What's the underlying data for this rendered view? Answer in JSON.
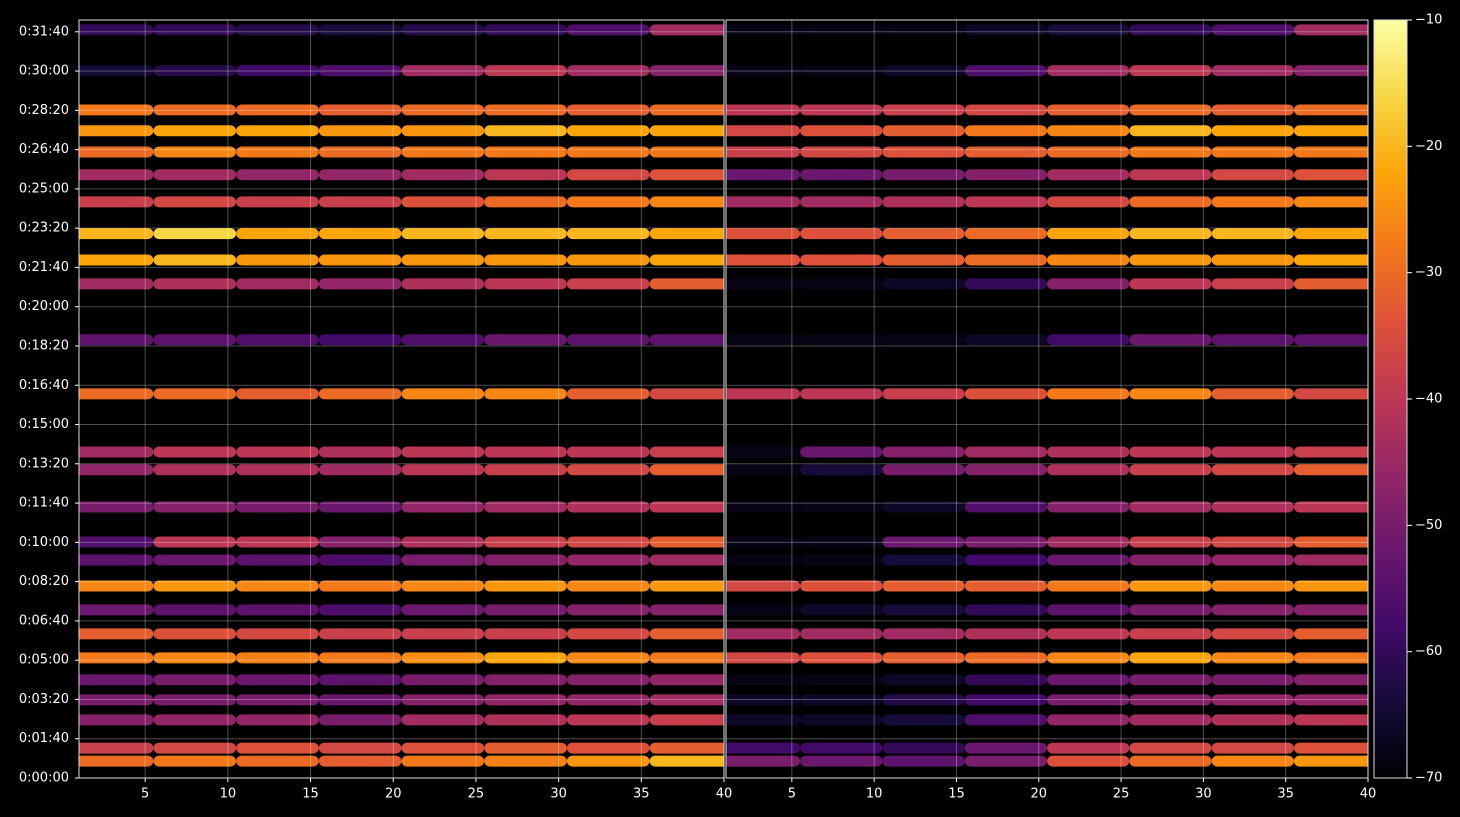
{
  "chart_data": [
    {
      "type": "heatmap",
      "colormap": "inferno",
      "grid": true,
      "x": [
        3,
        8,
        13,
        18,
        23,
        28,
        33,
        38
      ],
      "y": [
        43,
        76,
        148,
        199,
        250,
        306,
        367,
        428,
        489,
        555,
        601,
        690,
        785,
        830,
        978,
        1116,
        1258,
        1319,
        1386,
        1467,
        1536,
        1594,
        1648,
        1701,
        1801,
        1905
      ],
      "xlim": [
        1,
        40
      ],
      "xticks": [
        5,
        10,
        15,
        20,
        25,
        30,
        35,
        40
      ],
      "ylim": [
        0,
        1930
      ],
      "yticks": [
        {
          "value": 0,
          "label": "0:00:00"
        },
        {
          "value": 100,
          "label": "0:01:40"
        },
        {
          "value": 200,
          "label": "0:03:20"
        },
        {
          "value": 300,
          "label": "0:05:00"
        },
        {
          "value": 400,
          "label": "0:06:40"
        },
        {
          "value": 500,
          "label": "0:08:20"
        },
        {
          "value": 600,
          "label": "0:10:00"
        },
        {
          "value": 700,
          "label": "0:11:40"
        },
        {
          "value": 800,
          "label": "0:13:20"
        },
        {
          "value": 900,
          "label": "0:15:00"
        },
        {
          "value": 1000,
          "label": "0:16:40"
        },
        {
          "value": 1100,
          "label": "0:18:20"
        },
        {
          "value": 1200,
          "label": "0:20:00"
        },
        {
          "value": 1300,
          "label": "0:21:40"
        },
        {
          "value": 1400,
          "label": "0:23:20"
        },
        {
          "value": 1500,
          "label": "0:25:00"
        },
        {
          "value": 1600,
          "label": "0:26:40"
        },
        {
          "value": 1700,
          "label": "0:28:20"
        },
        {
          "value": 1800,
          "label": "0:30:00"
        },
        {
          "value": 1900,
          "label": "0:31:40"
        }
      ],
      "clim": [
        -70,
        -10
      ],
      "values": [
        [
          -30,
          -28,
          -30,
          -32,
          -28,
          -27,
          -24,
          -20
        ],
        [
          -38,
          -36,
          -34,
          -36,
          -34,
          -32,
          -34,
          -32
        ],
        [
          -48,
          -46,
          -46,
          -50,
          -44,
          -42,
          -40,
          -38
        ],
        [
          -50,
          -50,
          -50,
          -52,
          -48,
          -46,
          -46,
          -44
        ],
        [
          -52,
          -50,
          -52,
          -54,
          -50,
          -48,
          -48,
          -46
        ],
        [
          -28,
          -26,
          -27,
          -28,
          -25,
          -22,
          -26,
          -28
        ],
        [
          -32,
          -34,
          -36,
          -38,
          -38,
          -38,
          -36,
          -32
        ],
        [
          -52,
          -54,
          -54,
          -56,
          -52,
          -50,
          -48,
          -48
        ],
        [
          -26,
          -24,
          -26,
          -28,
          -26,
          -24,
          -26,
          -24
        ],
        [
          -54,
          -52,
          -54,
          -56,
          -50,
          -48,
          -46,
          -44
        ],
        [
          -56,
          -40,
          -40,
          -48,
          -42,
          -38,
          -36,
          -32
        ],
        [
          -50,
          -48,
          -50,
          -52,
          -46,
          -44,
          -42,
          -40
        ],
        [
          -46,
          -42,
          -42,
          -44,
          -40,
          -38,
          -36,
          -32
        ],
        [
          -44,
          -40,
          -40,
          -42,
          -40,
          -40,
          -40,
          -38
        ],
        [
          -30,
          -30,
          -32,
          -30,
          -26,
          -26,
          -32,
          -36
        ],
        [
          -54,
          -54,
          -56,
          -58,
          -56,
          -52,
          -54,
          -54
        ],
        [
          -44,
          -42,
          -44,
          -46,
          -42,
          -40,
          -38,
          -32
        ],
        [
          -22,
          -20,
          -24,
          -24,
          -24,
          -24,
          -24,
          -22
        ],
        [
          -20,
          -16,
          -22,
          -22,
          -20,
          -20,
          -20,
          -22
        ],
        [
          -38,
          -36,
          -38,
          -38,
          -34,
          -30,
          -28,
          -26
        ],
        [
          -44,
          -44,
          -46,
          -46,
          -44,
          -40,
          -36,
          -34
        ],
        [
          -30,
          -26,
          -28,
          -30,
          -28,
          -28,
          -28,
          -28
        ],
        [
          -24,
          -22,
          -22,
          -24,
          -24,
          -20,
          -22,
          -22
        ],
        [
          -28,
          -30,
          -30,
          -32,
          -30,
          -30,
          -32,
          -30
        ],
        [
          -64,
          -62,
          -58,
          -56,
          -44,
          -40,
          -44,
          -48
        ],
        [
          -60,
          -60,
          -62,
          -64,
          -62,
          -60,
          -56,
          -44
        ]
      ]
    },
    {
      "type": "heatmap",
      "colormap": "inferno",
      "grid": true,
      "x": [
        3,
        8,
        13,
        18,
        23,
        28,
        33,
        38
      ],
      "y": [
        43,
        76,
        148,
        199,
        250,
        306,
        367,
        428,
        489,
        555,
        601,
        690,
        785,
        830,
        978,
        1116,
        1258,
        1319,
        1386,
        1467,
        1536,
        1594,
        1648,
        1701,
        1801,
        1905
      ],
      "xlim": [
        1,
        40
      ],
      "xticks": [
        5,
        10,
        15,
        20,
        25,
        30,
        35,
        40
      ],
      "ylim": [
        0,
        1930
      ],
      "yticks": [
        0,
        100,
        200,
        300,
        400,
        500,
        600,
        700,
        800,
        900,
        1000,
        1100,
        1200,
        1300,
        1400,
        1500,
        1600,
        1700,
        1800,
        1900
      ],
      "clim": [
        -70,
        -10
      ],
      "colorbar_ticks": [
        {
          "value": -10,
          "label": "−10"
        },
        {
          "value": -20,
          "label": "−20"
        },
        {
          "value": -30,
          "label": "−30"
        },
        {
          "value": -40,
          "label": "−40"
        },
        {
          "value": -50,
          "label": "−50"
        },
        {
          "value": -60,
          "label": "−60"
        },
        {
          "value": -70,
          "label": "−70"
        }
      ],
      "values": [
        [
          -50,
          -52,
          -54,
          -50,
          -34,
          -30,
          -26,
          -24
        ],
        [
          -58,
          -58,
          -60,
          -52,
          -40,
          -36,
          -36,
          -34
        ],
        [
          -66,
          -66,
          -64,
          -56,
          -46,
          -44,
          -42,
          -40
        ],
        [
          -66,
          -66,
          -62,
          -58,
          -50,
          -48,
          -46,
          -46
        ],
        [
          -68,
          -68,
          -66,
          -60,
          -52,
          -50,
          -50,
          -48
        ],
        [
          -36,
          -34,
          -32,
          -30,
          -26,
          -22,
          -26,
          -28
        ],
        [
          -44,
          -44,
          -44,
          -42,
          -40,
          -38,
          -36,
          -32
        ],
        [
          -68,
          -66,
          -64,
          -60,
          -54,
          -50,
          -48,
          -48
        ],
        [
          -36,
          -34,
          -32,
          -32,
          -28,
          -24,
          -26,
          -24
        ],
        [
          -68,
          -68,
          -64,
          -58,
          -52,
          -48,
          -46,
          -44
        ],
        [
          -68,
          -68,
          -52,
          -50,
          -44,
          -38,
          -36,
          -32
        ],
        [
          -68,
          -68,
          -66,
          -56,
          -48,
          -44,
          -42,
          -40
        ],
        [
          -68,
          -64,
          -50,
          -48,
          -42,
          -38,
          -36,
          -32
        ],
        [
          -68,
          -52,
          -48,
          -44,
          -42,
          -40,
          -40,
          -38
        ],
        [
          -40,
          -40,
          -38,
          -34,
          -28,
          -26,
          -32,
          -36
        ],
        [
          -68,
          -68,
          -68,
          -66,
          -58,
          -52,
          -54,
          -54
        ],
        [
          -68,
          -68,
          -66,
          -60,
          -48,
          -40,
          -38,
          -32
        ],
        [
          -34,
          -34,
          -32,
          -30,
          -26,
          -24,
          -24,
          -22
        ],
        [
          -34,
          -34,
          -32,
          -30,
          -22,
          -20,
          -20,
          -22
        ],
        [
          -44,
          -44,
          -42,
          -40,
          -36,
          -30,
          -28,
          -26
        ],
        [
          -52,
          -52,
          -50,
          -48,
          -44,
          -40,
          -36,
          -34
        ],
        [
          -38,
          -36,
          -34,
          -32,
          -30,
          -28,
          -28,
          -28
        ],
        [
          -36,
          -34,
          -32,
          -28,
          -26,
          -20,
          -22,
          -22
        ],
        [
          -40,
          -40,
          -38,
          -36,
          -32,
          -30,
          -32,
          -30
        ],
        [
          -68,
          -68,
          -66,
          -56,
          -44,
          -40,
          -44,
          -48
        ],
        [
          -68,
          -68,
          -68,
          -66,
          -64,
          -60,
          -56,
          -44
        ]
      ]
    }
  ]
}
